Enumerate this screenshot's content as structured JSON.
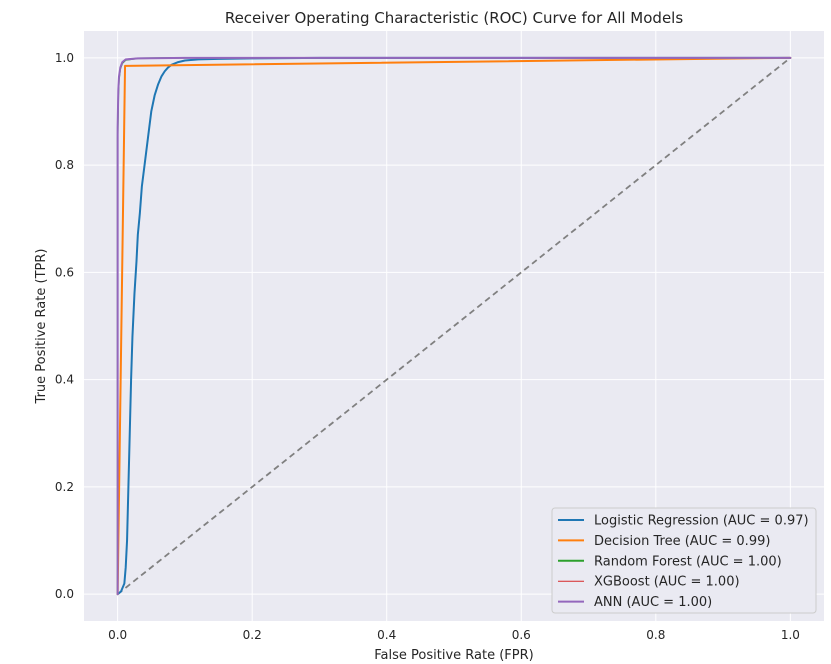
{
  "chart_data": {
    "type": "line",
    "title": "Receiver Operating Characteristic (ROC) Curve for All Models",
    "xlabel": "False Positive Rate (FPR)",
    "ylabel": "True Positive Rate (TPR)",
    "xlim": [
      -0.05,
      1.05
    ],
    "ylim": [
      -0.05,
      1.05
    ],
    "xticks": [
      0.0,
      0.2,
      0.4,
      0.6,
      0.8,
      1.0
    ],
    "yticks": [
      0.0,
      0.2,
      0.4,
      0.6,
      0.8,
      1.0
    ],
    "xtick_labels": [
      "0.0",
      "0.2",
      "0.4",
      "0.6",
      "0.8",
      "1.0"
    ],
    "ytick_labels": [
      "0.0",
      "0.2",
      "0.4",
      "0.6",
      "0.8",
      "1.0"
    ],
    "grid": true,
    "legend_position": "lower-right",
    "series": [
      {
        "name": "Logistic Regression (AUC = 0.97)",
        "color": "#1f77b4",
        "x": [
          0.0,
          0.005,
          0.01,
          0.012,
          0.014,
          0.016,
          0.018,
          0.02,
          0.022,
          0.025,
          0.028,
          0.03,
          0.033,
          0.036,
          0.04,
          0.045,
          0.05,
          0.055,
          0.06,
          0.065,
          0.07,
          0.075,
          0.08,
          0.09,
          0.1,
          0.12,
          0.15,
          0.2,
          0.3,
          0.5,
          0.7,
          1.0
        ],
        "y": [
          0.0,
          0.005,
          0.02,
          0.05,
          0.1,
          0.2,
          0.3,
          0.4,
          0.48,
          0.56,
          0.62,
          0.67,
          0.71,
          0.76,
          0.8,
          0.85,
          0.9,
          0.93,
          0.95,
          0.965,
          0.975,
          0.982,
          0.987,
          0.992,
          0.995,
          0.997,
          0.998,
          0.999,
          1.0,
          1.0,
          1.0,
          1.0
        ]
      },
      {
        "name": "Decision Tree (AUC = 0.99)",
        "color": "#ff7f0e",
        "x": [
          0.0,
          0.011,
          1.0
        ],
        "y": [
          0.0,
          0.985,
          1.0
        ]
      },
      {
        "name": "Random Forest (AUC = 1.00)",
        "color": "#2ca02c",
        "x": [
          0.0,
          0.0,
          0.001,
          0.002,
          0.004,
          0.007,
          0.012,
          0.03,
          0.1,
          1.0
        ],
        "y": [
          0.0,
          0.85,
          0.93,
          0.96,
          0.98,
          0.99,
          0.996,
          0.999,
          1.0,
          1.0
        ]
      },
      {
        "name": "XGBoost (AUC = 1.00)",
        "color": "#d62728",
        "x": [
          0.0,
          0.0,
          0.001,
          0.002,
          0.004,
          0.007,
          0.012,
          0.03,
          0.1,
          1.0
        ],
        "y": [
          0.0,
          0.86,
          0.94,
          0.965,
          0.982,
          0.992,
          0.997,
          0.999,
          1.0,
          1.0
        ]
      },
      {
        "name": "ANN (AUC = 1.00)",
        "color": "#9467bd",
        "x": [
          0.0,
          0.0,
          0.001,
          0.002,
          0.004,
          0.007,
          0.012,
          0.03,
          0.1,
          1.0
        ],
        "y": [
          0.0,
          0.87,
          0.94,
          0.965,
          0.982,
          0.992,
          0.997,
          0.999,
          1.0,
          1.0
        ]
      }
    ],
    "reference_line": {
      "x": [
        0.0,
        1.0
      ],
      "y": [
        0.0,
        1.0
      ],
      "color": "#808080",
      "style": "dashed"
    }
  }
}
